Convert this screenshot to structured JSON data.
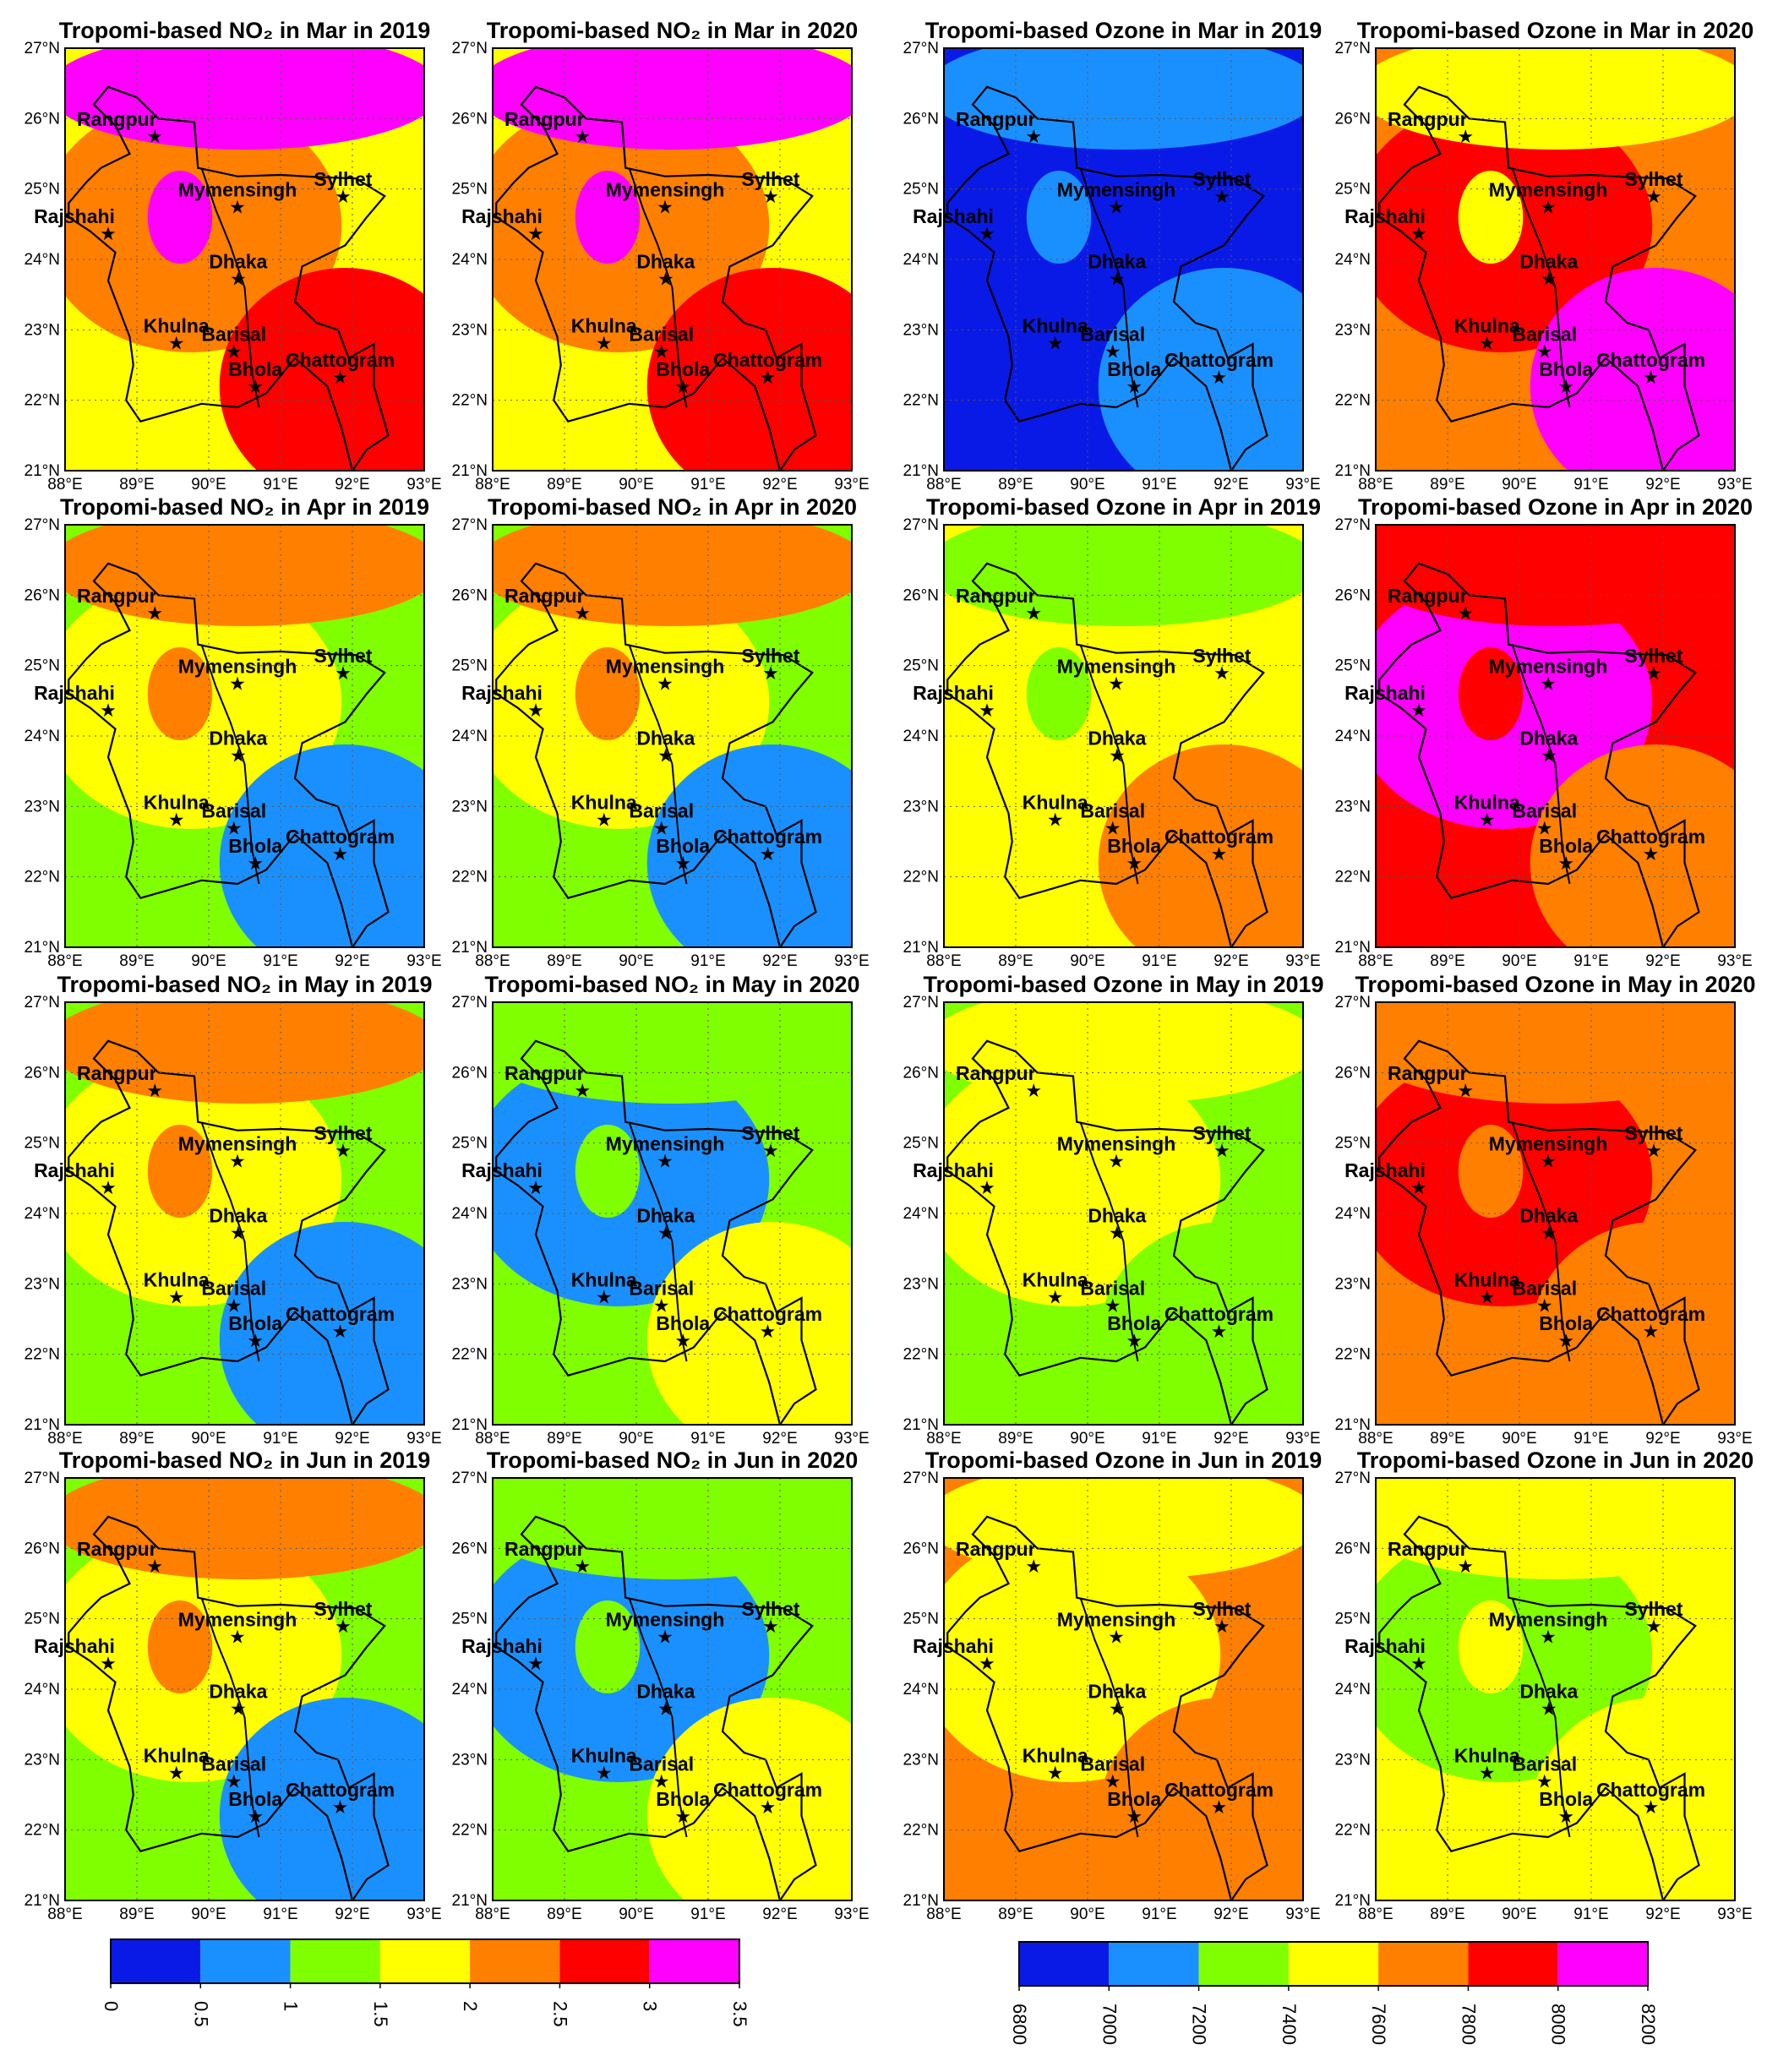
{
  "figure": {
    "panels": [
      {
        "title": "Tropomi-based NO₂ in Mar in 2019",
        "variable": "NO2",
        "month": "Mar",
        "year": "2019",
        "dominant": [
          "#ffff00",
          "#ff7f00",
          "#ff0000",
          "#ff00ff"
        ]
      },
      {
        "title": "Tropomi-based NO₂ in Mar in 2020",
        "variable": "NO2",
        "month": "Mar",
        "year": "2020",
        "dominant": [
          "#ffff00",
          "#ff7f00",
          "#ff0000",
          "#ff00ff"
        ]
      },
      {
        "title": "Tropomi-based Ozone in Mar in 2019",
        "variable": "Ozone",
        "month": "Mar",
        "year": "2019",
        "dominant": [
          "#0a1ae6",
          "#0a1ae6",
          "#1a90ff",
          "#1a90ff"
        ]
      },
      {
        "title": "Tropomi-based Ozone in Mar in 2020",
        "variable": "Ozone",
        "month": "Mar",
        "year": "2020",
        "dominant": [
          "#ff7f00",
          "#ff0000",
          "#ff00ff",
          "#ffff00"
        ]
      },
      {
        "title": "Tropomi-based NO₂ in Apr in 2019",
        "variable": "NO2",
        "month": "Apr",
        "year": "2019",
        "dominant": [
          "#80ff00",
          "#ffff00",
          "#1a90ff",
          "#ff7f00"
        ]
      },
      {
        "title": "Tropomi-based NO₂ in Apr in 2020",
        "variable": "NO2",
        "month": "Apr",
        "year": "2020",
        "dominant": [
          "#80ff00",
          "#ffff00",
          "#1a90ff",
          "#ff7f00"
        ]
      },
      {
        "title": "Tropomi-based Ozone in Apr in 2019",
        "variable": "Ozone",
        "month": "Apr",
        "year": "2019",
        "dominant": [
          "#ffff00",
          "#ffff00",
          "#ff7f00",
          "#80ff00"
        ]
      },
      {
        "title": "Tropomi-based Ozone in Apr in 2020",
        "variable": "Ozone",
        "month": "Apr",
        "year": "2020",
        "dominant": [
          "#ff0000",
          "#ff00ff",
          "#ff7f00",
          "#ff0000"
        ]
      },
      {
        "title": "Tropomi-based NO₂ in May in 2019",
        "variable": "NO2",
        "month": "May",
        "year": "2019",
        "dominant": [
          "#80ff00",
          "#ffff00",
          "#1a90ff",
          "#ff7f00"
        ]
      },
      {
        "title": "Tropomi-based NO₂ in May in 2020",
        "variable": "NO2",
        "month": "May",
        "year": "2020",
        "dominant": [
          "#80ff00",
          "#1a90ff",
          "#ffff00",
          "#80ff00"
        ]
      },
      {
        "title": "Tropomi-based Ozone in May in 2019",
        "variable": "Ozone",
        "month": "May",
        "year": "2019",
        "dominant": [
          "#80ff00",
          "#ffff00",
          "#80ff00",
          "#ffff00"
        ]
      },
      {
        "title": "Tropomi-based Ozone in May in 2020",
        "variable": "Ozone",
        "month": "May",
        "year": "2020",
        "dominant": [
          "#ff7f00",
          "#ff0000",
          "#ff7f00",
          "#ff7f00"
        ]
      },
      {
        "title": "Tropomi-based NO₂ in Jun in 2019",
        "variable": "NO2",
        "month": "Jun",
        "year": "2019",
        "dominant": [
          "#80ff00",
          "#ffff00",
          "#1a90ff",
          "#ff7f00"
        ]
      },
      {
        "title": "Tropomi-based NO₂ in Jun in 2020",
        "variable": "NO2",
        "month": "Jun",
        "year": "2020",
        "dominant": [
          "#80ff00",
          "#1a90ff",
          "#ffff00",
          "#80ff00"
        ]
      },
      {
        "title": "Tropomi-based Ozone in Jun in 2019",
        "variable": "Ozone",
        "month": "Jun",
        "year": "2019",
        "dominant": [
          "#ff7f00",
          "#ffff00",
          "#ff7f00",
          "#ffff00"
        ]
      },
      {
        "title": "Tropomi-based Ozone in Jun in 2020",
        "variable": "Ozone",
        "month": "Jun",
        "year": "2020",
        "dominant": [
          "#ffff00",
          "#80ff00",
          "#ffff00",
          "#ffff00"
        ]
      }
    ],
    "lon_ticks": [
      "88°E",
      "89°E",
      "90°E",
      "91°E",
      "92°E",
      "93°E"
    ],
    "lat_ticks": [
      "21°N",
      "22°N",
      "23°N",
      "24°N",
      "25°N",
      "26°N",
      "27°N"
    ],
    "lon_range": [
      88,
      93
    ],
    "lat_range": [
      21,
      27
    ],
    "cities": [
      {
        "name": "Rangpur",
        "lon": 89.25,
        "lat": 25.75
      },
      {
        "name": "Mymensingh",
        "lon": 90.4,
        "lat": 24.75
      },
      {
        "name": "Sylhet",
        "lon": 91.87,
        "lat": 24.9
      },
      {
        "name": "Rajshahi",
        "lon": 88.6,
        "lat": 24.37
      },
      {
        "name": "Dhaka",
        "lon": 90.41,
        "lat": 23.73
      },
      {
        "name": "Khulna",
        "lon": 89.55,
        "lat": 22.82
      },
      {
        "name": "Barisal",
        "lon": 90.35,
        "lat": 22.7
      },
      {
        "name": "Chattogram",
        "lon": 91.83,
        "lat": 22.33
      },
      {
        "name": "Bhola",
        "lon": 90.65,
        "lat": 22.2
      }
    ],
    "colorbars": [
      {
        "variable": "NO2",
        "labels": [
          "0",
          "0.5",
          "1",
          "1.5",
          "2",
          "2.5",
          "3",
          "3.5"
        ],
        "colors": [
          "#0a1ae6",
          "#1a90ff",
          "#80ff00",
          "#ffff00",
          "#ff7f00",
          "#ff0000",
          "#ff00ff"
        ]
      },
      {
        "variable": "Ozone",
        "labels": [
          "6800",
          "7000",
          "7200",
          "7400",
          "7600",
          "7800",
          "8000",
          "8200"
        ],
        "colors": [
          "#0a1ae6",
          "#1a90ff",
          "#80ff00",
          "#ffff00",
          "#ff7f00",
          "#ff0000",
          "#ff00ff"
        ]
      }
    ]
  }
}
